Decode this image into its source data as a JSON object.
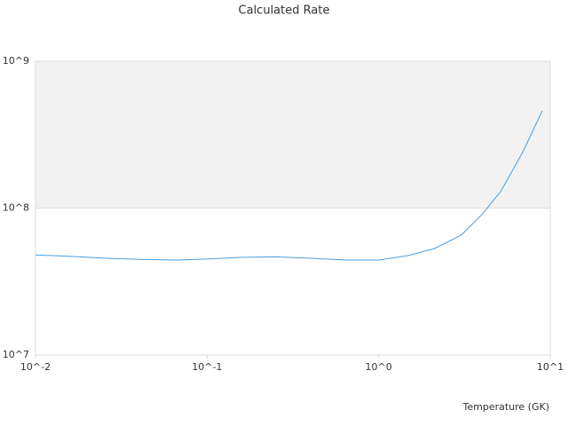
{
  "chart_data": {
    "type": "line",
    "title": "Calculated Rate",
    "xlabel": "Temperature (GK)",
    "x": [
      0.01,
      0.0161,
      0.0259,
      0.0418,
      0.0673,
      0.1,
      0.155,
      0.25,
      0.403,
      0.644,
      1.0,
      1.48,
      2.12,
      3.03,
      4.08,
      5.17,
      6.97,
      8.97
    ],
    "series": [
      {
        "color": "#4a9ee0",
        "values": [
          48000000,
          46900000,
          45600000,
          44700000,
          44300000,
          45000000,
          46200000,
          46600000,
          45600000,
          44300000,
          44300000,
          47500000,
          53100000,
          65500000,
          92700000,
          131000000,
          245000000,
          459000000
        ]
      }
    ],
    "xlim": [
      0.01,
      10
    ],
    "ylim": [
      10000000,
      1000000000
    ],
    "xticks": [
      {
        "value": 0.01,
        "label": "10^-2"
      },
      {
        "value": 0.1,
        "label": "10^-1"
      },
      {
        "value": 1,
        "label": "10^0"
      },
      {
        "value": 10,
        "label": "10^1"
      }
    ],
    "yticks": [
      {
        "value": 10000000,
        "label": "10^7"
      },
      {
        "value": 100000000,
        "label": "10^8"
      },
      {
        "value": 1000000000,
        "label": "10^9"
      }
    ],
    "xscale": "log",
    "yscale": "log",
    "grid": true
  }
}
